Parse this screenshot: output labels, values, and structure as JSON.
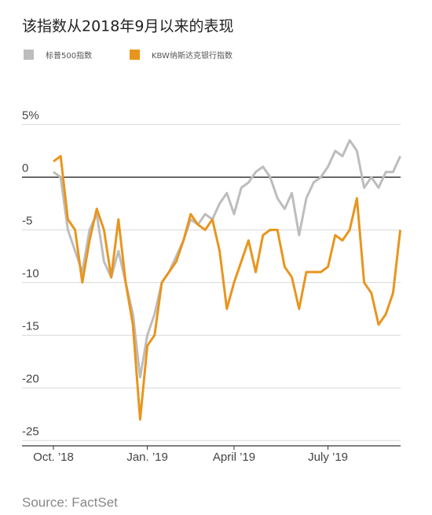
{
  "chart_data": {
    "type": "line",
    "title": "该指数从2018年9月以来的表现",
    "source": "Source: FactSet",
    "categories": [
      "Oct. ’18",
      null,
      null,
      null,
      null,
      null,
      null,
      null,
      null,
      null,
      null,
      null,
      null,
      "Jan. ’19",
      null,
      null,
      null,
      null,
      null,
      null,
      null,
      null,
      null,
      null,
      null,
      "April ’19",
      null,
      null,
      null,
      null,
      null,
      null,
      null,
      null,
      null,
      null,
      null,
      null,
      "July ’19",
      null,
      null,
      null,
      null,
      null,
      null,
      null,
      null,
      null,
      null
    ],
    "series": [
      {
        "name": "标普500指数",
        "color": "#bdbdbd",
        "values": [
          0.5,
          0,
          -5,
          -7,
          -9,
          -5,
          -3.5,
          -8,
          -9.5,
          -7,
          -10,
          -13,
          -19,
          -15,
          -13,
          -10,
          -9,
          -7.5,
          -6,
          -4,
          -4.5,
          -3.5,
          -4,
          -2.5,
          -1.5,
          -3.5,
          -1,
          -0.5,
          0.5,
          1,
          0,
          -2,
          -3,
          -1.5,
          -5.5,
          -2,
          -0.5,
          0,
          1,
          2.5,
          2,
          3.5,
          2.5,
          -1,
          0,
          -1,
          0.5,
          0.5,
          2
        ]
      },
      {
        "name": "KBW纳斯达克银行指数",
        "color": "#e8951e",
        "values": [
          1.5,
          2,
          -4,
          -5,
          -10,
          -6,
          -3,
          -5,
          -9.5,
          -4,
          -10,
          -14,
          -23,
          -16,
          -15,
          -10,
          -9,
          -8,
          -6,
          -3.5,
          -4.5,
          -5,
          -4,
          -7,
          -12.5,
          -10,
          -8,
          -6,
          -9,
          -5.5,
          -5,
          -5,
          -8.5,
          -9.5,
          -12.5,
          -9,
          -9,
          -9,
          -8.5,
          -5.5,
          -6,
          -5,
          -2,
          -10,
          -11,
          -14,
          -13,
          -11,
          -5
        ]
      }
    ],
    "ylim": [
      -25.5,
      6
    ],
    "yticks": [
      {
        "value": 5,
        "label": "5%"
      },
      0,
      -5,
      -10,
      -15,
      -20,
      -25
    ],
    "grid": true
  }
}
